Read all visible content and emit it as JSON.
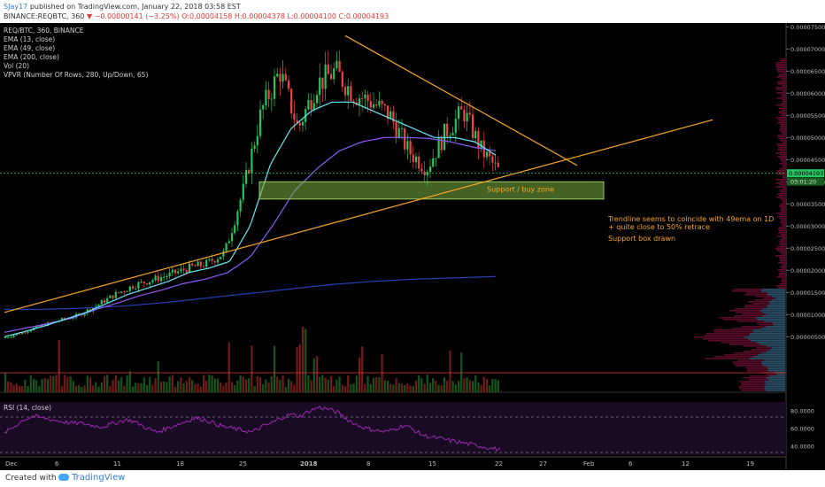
{
  "header": {
    "user": "SJay17",
    "published_text": "published on TradingView.com, January 22, 2018 03:58 EST",
    "symbol": "BINANCE:REQBTC, 360",
    "change": "▼ −0.00000141 (−3.25%)",
    "ohlc": "O:0.00004158 H:0.00004378 L:0.00004100 C:0.00004193"
  },
  "legend": [
    "REQ/BTC, 360, BINANCE",
    "EMA (13, close)",
    "EMA (49, close)",
    "EMA (200, close)",
    "Vol (20)",
    "VPVR (Number Of Rows, 280, Up/Down, 65)"
  ],
  "rsi_label": "RSI (14, close)",
  "annotations": {
    "zone_label": "Support / buy zone",
    "trendline_note_1": "Trendline seems to coincide with 49ema on 1D",
    "trendline_note_2": "+ quite close to 50% retrace",
    "support_note": "Support box drawn"
  },
  "price_badge": "0.00004193",
  "countdown_badge": "03:01:20",
  "footer": {
    "created": "Created with",
    "brand": "TradingView"
  },
  "colors": {
    "background": "#000000",
    "up": "#22c55e",
    "down": "#ef4444",
    "ema13": "#67e8f9",
    "ema49": "#8b5cf6",
    "ema200": "#2541b2",
    "trendline": "#f5a623",
    "support_box": "#7cb342",
    "rsi": "#9c27b0",
    "axis_text": "#bdbdbd"
  },
  "chart_data": {
    "type": "candlestick",
    "y_axis_ticks": [
      "0.00007500",
      "0.00007000",
      "0.00006500",
      "0.00006000",
      "0.00005500",
      "0.00005000",
      "0.00004500",
      "0.00004000",
      "0.00003500",
      "0.00003000",
      "0.00002500",
      "0.00002000",
      "0.00001500",
      "0.00001000",
      "0.00000500"
    ],
    "x_axis_ticks": [
      "Dec",
      "6",
      "11",
      "18",
      "25",
      "2018",
      "8",
      "15",
      "22",
      "27",
      "Feb",
      "6",
      "12",
      "19"
    ],
    "rsi_ticks": [
      "80.0000",
      "60.0000",
      "40.0000"
    ],
    "current_price": 4.193e-05,
    "support_zone": [
      3.61e-05,
      4e-05
    ],
    "descending_trendline": {
      "from": 7.3e-05,
      "to": 4.37e-05
    },
    "ascending_trendline": {
      "from": 1.05e-05,
      "to": 5.4e-05
    },
    "price_path": [
      4.8e-06,
      6e-06,
      7.5e-06,
      8.7e-06,
      9.8e-06,
      1.2e-05,
      1.45e-05,
      1.65e-05,
      1.78e-05,
      1.9e-05,
      2.05e-05,
      2.15e-05,
      2.4e-05,
      3.8e-05,
      5.6e-05,
      6.5e-05,
      5.2e-05,
      6.2e-05,
      6.5e-05,
      6e-05,
      5.8e-05,
      5.5e-05,
      4.7e-05,
      4.3e-05,
      5.1e-05,
      5.6e-05,
      4.7e-05,
      4.2e-05
    ],
    "ema13_path": [
      5e-06,
      6.2e-06,
      7.5e-06,
      9e-06,
      1.05e-05,
      1.25e-05,
      1.45e-05,
      1.6e-05,
      1.75e-05,
      1.95e-05,
      2.05e-05,
      2.2e-05,
      3e-05,
      4.4e-05,
      5.2e-05,
      5.6e-05,
      5.8e-05,
      5.8e-05,
      5.6e-05,
      5.4e-05,
      5.2e-05,
      5e-05,
      5e-05,
      4.9e-05,
      4.6e-05
    ],
    "ema49_path": [
      6e-06,
      7e-06,
      8e-06,
      9.2e-06,
      1.1e-05,
      1.25e-05,
      1.42e-05,
      1.55e-05,
      1.7e-05,
      1.8e-05,
      1.95e-05,
      2.3e-05,
      3e-05,
      3.8e-05,
      4.3e-05,
      4.7e-05,
      4.9e-05,
      5e-05,
      5e-05,
      4.98e-05,
      4.9e-05,
      4.78e-05,
      4.7e-05
    ],
    "ema200_path": [
      1.12e-05,
      1.12e-05,
      1.15e-05,
      1.2e-05,
      1.28e-05,
      1.38e-05,
      1.48e-05,
      1.58e-05,
      1.68e-05,
      1.75e-05,
      1.8e-05,
      1.83e-05,
      1.86e-05
    ],
    "rsi_path": [
      55,
      62,
      70,
      74,
      72,
      70,
      68,
      66,
      66,
      64,
      62,
      64,
      68,
      70,
      66,
      60,
      56,
      60,
      64,
      68,
      72,
      70,
      66,
      62,
      60,
      58,
      56,
      62,
      66,
      72,
      76,
      74,
      80,
      84,
      82,
      78,
      70,
      64,
      60,
      58,
      56,
      60,
      64,
      58,
      52,
      50,
      48,
      46,
      44,
      42,
      40,
      38,
      36
    ]
  }
}
